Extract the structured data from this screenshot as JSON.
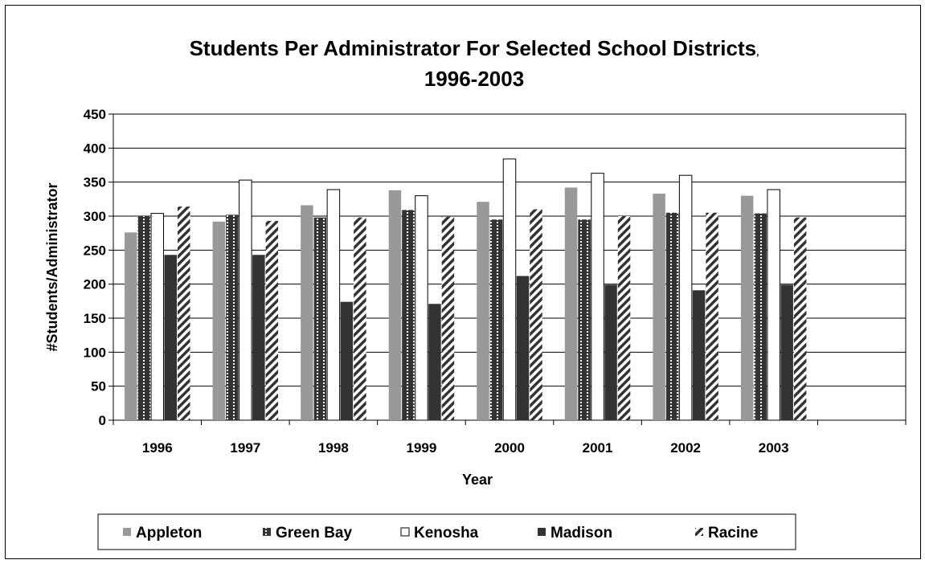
{
  "chart_data": {
    "type": "bar",
    "title": "Students Per Administrator For Selected School Districts",
    "title_suffix": ",",
    "subtitle": "1996-2003",
    "xlabel": "Year",
    "ylabel": "#Students/Administrator",
    "ylim": [
      0,
      450
    ],
    "yticks": [
      0,
      50,
      100,
      150,
      200,
      250,
      300,
      350,
      400,
      450
    ],
    "grid": true,
    "legend_position": "bottom",
    "categories": [
      "1996",
      "1997",
      "1998",
      "1999",
      "2000",
      "2001",
      "2002",
      "2003"
    ],
    "series": [
      {
        "name": "Appleton",
        "values": [
          276,
          292,
          316,
          338,
          321,
          342,
          333,
          330
        ],
        "color": "#999999",
        "pattern": "solid-gray"
      },
      {
        "name": "Green Bay",
        "values": [
          300,
          302,
          298,
          309,
          295,
          295,
          305,
          304
        ],
        "color": "#333333",
        "pattern": "dotted-dark"
      },
      {
        "name": "Kenosha",
        "values": [
          304,
          353,
          339,
          330,
          384,
          363,
          360,
          339
        ],
        "color": "#ffffff",
        "pattern": "white"
      },
      {
        "name": "Madison",
        "values": [
          243,
          243,
          174,
          171,
          212,
          199,
          191,
          199
        ],
        "color": "#333333",
        "pattern": "solid-dark"
      },
      {
        "name": "Racine",
        "values": [
          314,
          293,
          298,
          299,
          310,
          300,
          305,
          298
        ],
        "color": "#333333",
        "pattern": "diagonal-stripes"
      }
    ]
  }
}
